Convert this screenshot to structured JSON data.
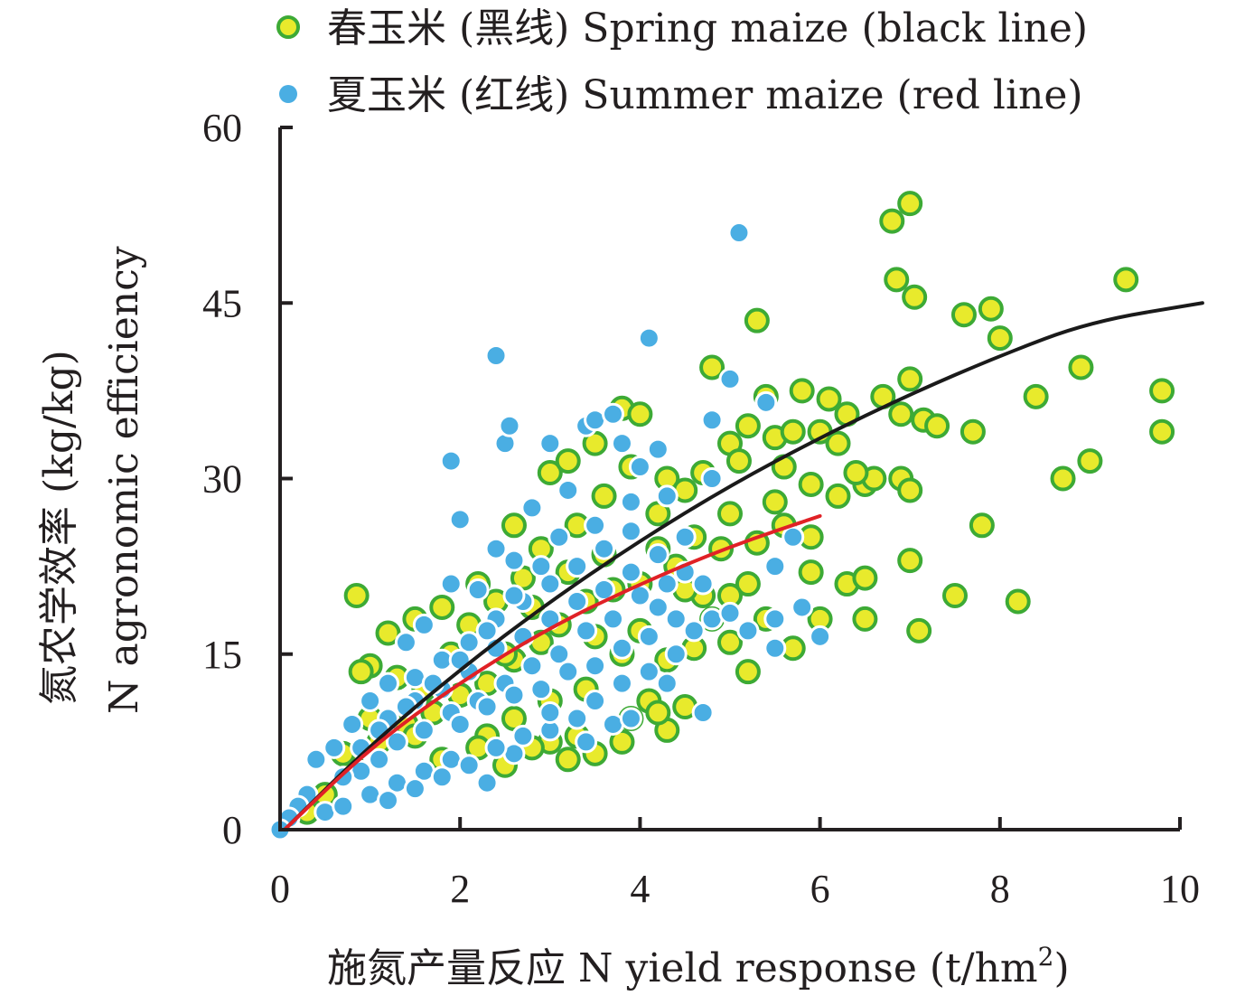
{
  "chart_data": {
    "type": "scatter",
    "xlabel": "施氮产量反应 N yield response (t/hm",
    "xlabel_sup": "2",
    "xlabel_end": ")",
    "ylabel_line1": "氮农学效率 (kg/kg)",
    "ylabel_line2": "N agronomic efficiency",
    "xlim": [
      0,
      10
    ],
    "ylim": [
      0,
      60
    ],
    "x_ticks": [
      0,
      2,
      4,
      6,
      8,
      10
    ],
    "y_ticks": [
      0,
      15,
      30,
      45,
      60
    ],
    "legend_placement": "top",
    "series": [
      {
        "name": "春玉米 (黑线) Spring maize (black line)",
        "marker_fill": "#e8ea2c",
        "marker_edge": "#3daa35",
        "fit_color": "#1a1a1a",
        "fit_curve": [
          [
            0.05,
            0.0
          ],
          [
            1,
            7.2
          ],
          [
            2,
            13.7
          ],
          [
            3,
            19.5
          ],
          [
            4,
            24.7
          ],
          [
            5,
            29.4
          ],
          [
            6,
            33.5
          ],
          [
            7,
            37.2
          ],
          [
            8,
            40.5
          ],
          [
            9,
            43.4
          ],
          [
            10.25,
            45.0
          ]
        ],
        "points": [
          [
            0.85,
            20.0
          ],
          [
            1.2,
            16.8
          ],
          [
            1.0,
            14.0
          ],
          [
            0.9,
            13.5
          ],
          [
            1.5,
            18.0
          ],
          [
            1.8,
            19.0
          ],
          [
            2.2,
            21.0
          ],
          [
            2.6,
            26.0
          ],
          [
            2.9,
            24.0
          ],
          [
            3.0,
            30.5
          ],
          [
            3.2,
            31.5
          ],
          [
            3.5,
            33.0
          ],
          [
            3.8,
            36.0
          ],
          [
            4.0,
            35.5
          ],
          [
            4.3,
            30.0
          ],
          [
            4.5,
            29.0
          ],
          [
            4.8,
            39.5
          ],
          [
            5.0,
            33.0
          ],
          [
            5.2,
            34.5
          ],
          [
            5.4,
            37.0
          ],
          [
            5.8,
            37.5
          ],
          [
            6.1,
            36.8
          ],
          [
            6.3,
            35.5
          ],
          [
            6.5,
            29.5
          ],
          [
            6.8,
            52.0
          ],
          [
            6.85,
            47.0
          ],
          [
            7.0,
            53.5
          ],
          [
            7.05,
            45.5
          ],
          [
            7.6,
            44.0
          ],
          [
            7.9,
            44.5
          ],
          [
            8.0,
            42.0
          ],
          [
            8.4,
            37.0
          ],
          [
            8.7,
            30.0
          ],
          [
            8.9,
            39.5
          ],
          [
            9.0,
            31.5
          ],
          [
            9.4,
            47.0
          ],
          [
            9.8,
            37.5
          ],
          [
            9.8,
            34.0
          ],
          [
            7.0,
            38.5
          ],
          [
            7.15,
            35.0
          ],
          [
            7.3,
            34.5
          ],
          [
            7.7,
            34.0
          ],
          [
            6.7,
            37.0
          ],
          [
            6.9,
            35.5
          ],
          [
            6.6,
            30.0
          ],
          [
            6.9,
            30.0
          ],
          [
            7.0,
            29.0
          ],
          [
            7.0,
            23.0
          ],
          [
            7.5,
            20.0
          ],
          [
            7.8,
            26.0
          ],
          [
            8.2,
            19.5
          ],
          [
            7.1,
            17.0
          ],
          [
            6.5,
            18.0
          ],
          [
            6.3,
            21.0
          ],
          [
            6.0,
            18.0
          ],
          [
            5.9,
            22.0
          ],
          [
            5.7,
            15.5
          ],
          [
            5.2,
            13.5
          ],
          [
            5.0,
            16.0
          ],
          [
            4.7,
            20.0
          ],
          [
            4.5,
            10.5
          ],
          [
            4.3,
            8.5
          ],
          [
            4.1,
            11.0
          ],
          [
            3.9,
            9.5
          ],
          [
            3.5,
            6.5
          ],
          [
            3.0,
            7.5
          ],
          [
            3.2,
            6.0
          ],
          [
            2.8,
            7.0
          ],
          [
            2.5,
            5.5
          ],
          [
            2.3,
            8.0
          ],
          [
            5.3,
            43.5
          ],
          [
            5.6,
            31.0
          ],
          [
            5.9,
            29.5
          ],
          [
            6.2,
            33.0
          ],
          [
            6.4,
            30.5
          ],
          [
            5.0,
            27.0
          ],
          [
            4.6,
            25.0
          ],
          [
            4.4,
            22.5
          ],
          [
            4.2,
            24.0
          ],
          [
            4.0,
            21.0
          ],
          [
            3.7,
            20.5
          ],
          [
            3.4,
            19.5
          ],
          [
            3.1,
            17.5
          ],
          [
            2.9,
            16.0
          ],
          [
            2.6,
            14.5
          ],
          [
            2.3,
            12.5
          ],
          [
            2.0,
            11.5
          ],
          [
            1.7,
            10.0
          ],
          [
            1.4,
            9.0
          ],
          [
            1.1,
            7.5
          ],
          [
            0.8,
            5.5
          ],
          [
            0.5,
            3.0
          ],
          [
            0.3,
            1.5
          ],
          [
            1.3,
            13.0
          ],
          [
            1.6,
            12.0
          ],
          [
            1.9,
            15.0
          ],
          [
            2.1,
            17.5
          ],
          [
            2.4,
            19.5
          ],
          [
            2.7,
            21.5
          ],
          [
            3.3,
            26.0
          ],
          [
            3.6,
            28.5
          ],
          [
            3.9,
            31.0
          ],
          [
            4.2,
            27.0
          ],
          [
            4.7,
            30.5
          ],
          [
            5.1,
            31.5
          ],
          [
            5.5,
            33.5
          ],
          [
            5.7,
            34.0
          ],
          [
            6.0,
            34.0
          ],
          [
            4.9,
            24.0
          ],
          [
            5.3,
            24.5
          ],
          [
            5.6,
            26.0
          ],
          [
            4.8,
            18.0
          ],
          [
            5.2,
            21.0
          ],
          [
            5.5,
            28.0
          ],
          [
            3.8,
            15.0
          ],
          [
            3.4,
            12.0
          ],
          [
            3.0,
            11.0
          ],
          [
            2.6,
            9.5
          ],
          [
            2.2,
            7.0
          ],
          [
            1.8,
            6.0
          ],
          [
            4.0,
            17.0
          ],
          [
            4.3,
            14.5
          ],
          [
            4.6,
            15.5
          ],
          [
            3.6,
            23.5
          ],
          [
            3.2,
            22.0
          ],
          [
            2.8,
            19.0
          ],
          [
            6.2,
            28.5
          ],
          [
            6.5,
            21.5
          ],
          [
            5.9,
            25.0
          ],
          [
            1.0,
            9.5
          ],
          [
            0.7,
            6.5
          ],
          [
            1.5,
            8.0
          ],
          [
            2.5,
            15.0
          ],
          [
            3.5,
            16.5
          ],
          [
            4.5,
            20.5
          ],
          [
            5.0,
            20.0
          ],
          [
            5.4,
            18.0
          ],
          [
            4.2,
            10.0
          ],
          [
            3.8,
            7.5
          ],
          [
            3.3,
            8.0
          ]
        ]
      },
      {
        "name": "夏玉米 (红线) Summer maize (red line)",
        "marker_fill": "#4aaee3",
        "marker_edge": "#ffffff",
        "fit_color": "#e02126",
        "fit_curve": [
          [
            0.05,
            0.0
          ],
          [
            1,
            7.0
          ],
          [
            2,
            12.6
          ],
          [
            3,
            17.3
          ],
          [
            4,
            21.0
          ],
          [
            5,
            24.2
          ],
          [
            6,
            26.8
          ]
        ],
        "points": [
          [
            5.1,
            51.0
          ],
          [
            4.1,
            42.0
          ],
          [
            2.4,
            40.5
          ],
          [
            2.5,
            33.0
          ],
          [
            2.55,
            34.5
          ],
          [
            1.9,
            31.5
          ],
          [
            2.0,
            26.5
          ],
          [
            3.0,
            33.0
          ],
          [
            3.4,
            34.5
          ],
          [
            3.5,
            35.0
          ],
          [
            3.7,
            35.5
          ],
          [
            3.8,
            33.0
          ],
          [
            4.0,
            31.0
          ],
          [
            4.2,
            32.5
          ],
          [
            4.8,
            35.0
          ],
          [
            5.0,
            38.5
          ],
          [
            5.4,
            36.5
          ],
          [
            4.8,
            30.0
          ],
          [
            4.3,
            28.5
          ],
          [
            3.9,
            28.0
          ],
          [
            3.5,
            26.0
          ],
          [
            3.1,
            25.0
          ],
          [
            2.8,
            27.5
          ],
          [
            2.6,
            23.0
          ],
          [
            2.4,
            24.0
          ],
          [
            2.2,
            20.5
          ],
          [
            1.9,
            21.0
          ],
          [
            1.6,
            17.5
          ],
          [
            1.4,
            16.0
          ],
          [
            1.2,
            12.5
          ],
          [
            1.0,
            11.0
          ],
          [
            0.8,
            9.0
          ],
          [
            0.6,
            7.0
          ],
          [
            0.4,
            6.0
          ],
          [
            0.3,
            3.0
          ],
          [
            0.2,
            2.0
          ],
          [
            0.1,
            1.0
          ],
          [
            0.0,
            0.0
          ],
          [
            0.5,
            1.5
          ],
          [
            0.7,
            2.0
          ],
          [
            1.0,
            3.0
          ],
          [
            1.3,
            4.0
          ],
          [
            1.6,
            5.0
          ],
          [
            1.9,
            6.0
          ],
          [
            2.3,
            4.0
          ],
          [
            2.6,
            6.5
          ],
          [
            3.0,
            8.5
          ],
          [
            3.4,
            7.5
          ],
          [
            3.7,
            9.0
          ],
          [
            3.9,
            9.5
          ],
          [
            4.3,
            12.5
          ],
          [
            4.7,
            10.0
          ],
          [
            4.8,
            18.0
          ],
          [
            5.0,
            18.5
          ],
          [
            5.2,
            17.0
          ],
          [
            5.5,
            15.5
          ],
          [
            5.5,
            18.0
          ],
          [
            5.8,
            19.0
          ],
          [
            6.0,
            16.5
          ],
          [
            5.5,
            22.5
          ],
          [
            5.7,
            25.0
          ],
          [
            4.5,
            25.0
          ],
          [
            4.3,
            21.0
          ],
          [
            4.0,
            20.0
          ],
          [
            3.7,
            18.0
          ],
          [
            3.4,
            17.0
          ],
          [
            3.1,
            15.0
          ],
          [
            2.8,
            14.0
          ],
          [
            2.5,
            12.5
          ],
          [
            2.2,
            11.0
          ],
          [
            1.9,
            10.0
          ],
          [
            1.6,
            8.5
          ],
          [
            1.3,
            7.5
          ],
          [
            1.1,
            6.0
          ],
          [
            0.9,
            5.0
          ],
          [
            1.5,
            13.0
          ],
          [
            1.8,
            14.5
          ],
          [
            2.1,
            16.0
          ],
          [
            2.4,
            18.0
          ],
          [
            2.7,
            19.5
          ],
          [
            3.0,
            21.0
          ],
          [
            3.3,
            22.5
          ],
          [
            3.6,
            24.0
          ],
          [
            3.9,
            25.5
          ],
          [
            4.2,
            23.5
          ],
          [
            4.5,
            22.0
          ],
          [
            4.7,
            21.0
          ],
          [
            2.0,
            9.0
          ],
          [
            2.3,
            10.5
          ],
          [
            2.6,
            11.5
          ],
          [
            2.9,
            12.0
          ],
          [
            3.2,
            13.5
          ],
          [
            3.5,
            14.0
          ],
          [
            3.8,
            15.5
          ],
          [
            4.1,
            16.5
          ],
          [
            4.4,
            18.0
          ],
          [
            1.2,
            9.5
          ],
          [
            1.5,
            11.0
          ],
          [
            1.8,
            12.0
          ],
          [
            2.1,
            13.5
          ],
          [
            2.4,
            15.5
          ],
          [
            2.7,
            16.5
          ],
          [
            3.0,
            18.0
          ],
          [
            3.3,
            19.5
          ],
          [
            3.6,
            20.5
          ],
          [
            3.9,
            22.0
          ],
          [
            4.2,
            19.0
          ],
          [
            4.6,
            17.0
          ],
          [
            3.2,
            29.0
          ],
          [
            2.9,
            22.5
          ],
          [
            2.6,
            20.0
          ],
          [
            2.3,
            17.0
          ],
          [
            2.0,
            14.5
          ],
          [
            1.7,
            12.5
          ],
          [
            1.4,
            10.5
          ],
          [
            1.1,
            8.5
          ],
          [
            0.9,
            7.0
          ],
          [
            0.7,
            4.5
          ],
          [
            3.5,
            11.0
          ],
          [
            3.8,
            12.5
          ],
          [
            4.1,
            13.5
          ],
          [
            4.4,
            15.0
          ],
          [
            3.3,
            9.5
          ],
          [
            3.0,
            10.0
          ],
          [
            2.7,
            8.0
          ],
          [
            2.4,
            7.0
          ],
          [
            2.1,
            5.5
          ],
          [
            1.8,
            4.5
          ],
          [
            1.5,
            3.5
          ],
          [
            1.2,
            2.5
          ]
        ]
      }
    ]
  }
}
